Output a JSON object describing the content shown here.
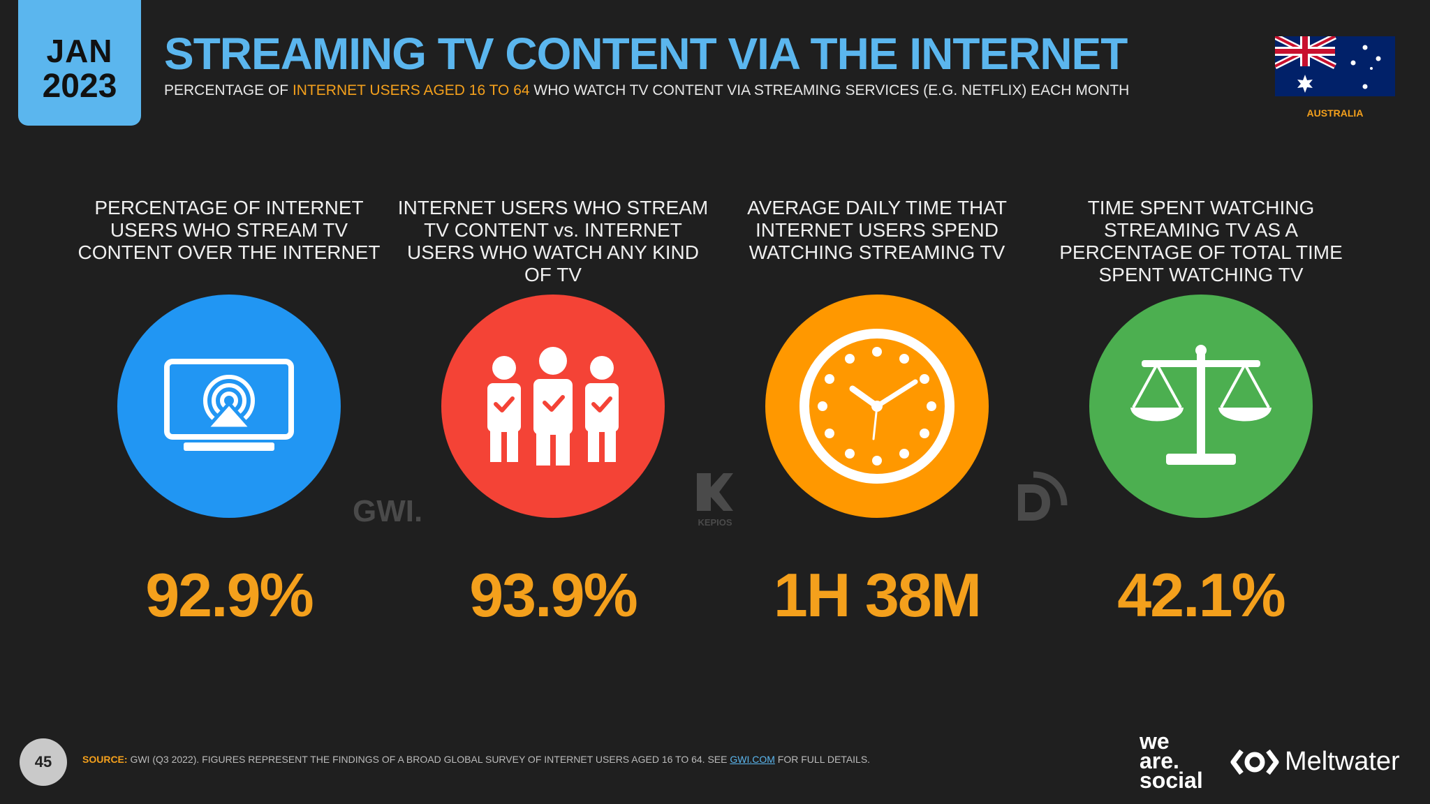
{
  "header": {
    "month": "JAN",
    "year": "2023",
    "title": "STREAMING TV CONTENT VIA THE INTERNET",
    "subtitle_pre": "PERCENTAGE OF ",
    "subtitle_highlight": "INTERNET USERS AGED 16 TO 64",
    "subtitle_post": " WHO WATCH TV CONTENT VIA STREAMING SERVICES (E.G. NETFLIX) EACH MONTH",
    "country": "AUSTRALIA"
  },
  "stats": [
    {
      "label": "PERCENTAGE OF INTERNET USERS WHO STREAM TV CONTENT OVER THE INTERNET",
      "value": "92.9%",
      "icon": "tv-stream-icon",
      "color": "#2196f3"
    },
    {
      "label": "INTERNET USERS WHO STREAM TV CONTENT vs. INTERNET USERS WHO WATCH ANY KIND OF TV",
      "value": "93.9%",
      "icon": "people-check-icon",
      "color": "#f44336"
    },
    {
      "label": "AVERAGE DAILY TIME THAT INTERNET USERS SPEND WATCHING STREAMING TV",
      "value": "1H 38M",
      "icon": "clock-icon",
      "color": "#ff9800"
    },
    {
      "label": "TIME SPENT WATCHING STREAMING TV AS A PERCENTAGE OF TOTAL TIME SPENT WATCHING TV",
      "value": "42.1%",
      "icon": "scales-icon",
      "color": "#4caf50"
    }
  ],
  "logos": {
    "gwi": "GWI.",
    "kepios": "KEPIOS"
  },
  "footer": {
    "page_number": "45",
    "source_label": "SOURCE:",
    "source_text": " GWI (Q3 2022). FIGURES REPRESENT THE FINDINGS OF A BROAD GLOBAL SURVEY OF INTERNET USERS AGED 16 TO 64. SEE ",
    "source_link": "GWI.COM",
    "source_end": " FOR FULL DETAILS.",
    "brand1_line1": "we",
    "brand1_line2": "are.",
    "brand1_line3": "social",
    "brand2": "Meltwater"
  },
  "colors": {
    "accent": "#f4a01c",
    "title": "#5bb6ee",
    "background": "#1f1f1f"
  }
}
